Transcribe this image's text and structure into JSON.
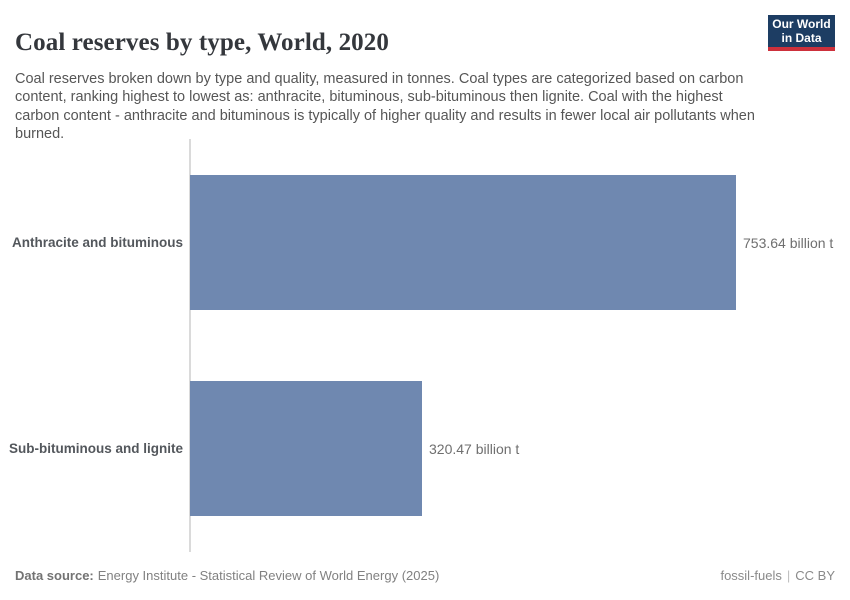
{
  "header": {
    "title": "Coal reserves by type, World, 2020",
    "subtitle": "Coal reserves broken down by type and quality, measured in tonnes. Coal types are categorized based on carbon content, ranking highest to lowest as: anthracite, bituminous, sub-bituminous then lignite. Coal with the highest carbon content - anthracite and bituminous is typically of higher quality and results in fewer local air pollutants when burned.",
    "logo": {
      "line1": "Our World",
      "line2": "in Data",
      "bg_color": "#1d3d63",
      "accent_color": "#cd303b"
    }
  },
  "chart_data": {
    "type": "bar",
    "orientation": "horizontal",
    "title": "Coal reserves by type, World, 2020",
    "categories": [
      "Anthracite and bituminous",
      "Sub-bituminous and lignite"
    ],
    "values": [
      753.64,
      320.47
    ],
    "value_labels": [
      "753.64 billion t",
      "320.47 billion t"
    ],
    "unit": "billion t",
    "xlim": [
      0,
      753.64
    ],
    "grid": false,
    "legend": "none",
    "bar_color": "#6f88b0"
  },
  "footer": {
    "datasource_label": "Data source:",
    "datasource_value": "Energy Institute - Statistical Review of World Energy (2025)",
    "slug": "fossil-fuels",
    "separator": "|",
    "license": "CC BY"
  }
}
